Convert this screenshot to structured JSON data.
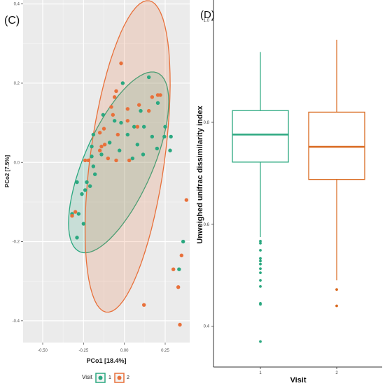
{
  "chart_data": [
    {
      "panel_label": "(C)",
      "type": "scatter",
      "xlabel": "PCo1 [18.4%]",
      "ylabel": "PCo2 [7.5%]",
      "xlim": [
        -0.62,
        0.4
      ],
      "ylim": [
        -0.455,
        0.41
      ],
      "x_ticks": [
        -0.5,
        -0.25,
        0.0,
        0.25
      ],
      "x_tick_labels": [
        "-0.50",
        "-0.25",
        "0.00",
        "0.25"
      ],
      "y_ticks": [
        -0.4,
        -0.2,
        0.0,
        0.2,
        0.4
      ],
      "y_tick_labels": [
        "-0.4",
        "-0.2",
        "0.0",
        "0.2",
        "0.4"
      ],
      "grid": true,
      "legend": {
        "title": "Visit",
        "position": "bottom",
        "entries": [
          "1",
          "2"
        ]
      },
      "series": [
        {
          "name": "1",
          "color": "#2ba880",
          "points": [
            [
              -0.01,
              0.2
            ],
            [
              0.15,
              0.215
            ],
            [
              0.25,
              0.09
            ],
            [
              0.205,
              0.15
            ],
            [
              0.1,
              0.13
            ],
            [
              -0.13,
              0.12
            ],
            [
              -0.06,
              0.105
            ],
            [
              -0.02,
              0.1
            ],
            [
              0.06,
              0.09
            ],
            [
              0.12,
              0.09
            ],
            [
              -0.19,
              0.07
            ],
            [
              0.02,
              0.07
            ],
            [
              0.17,
              0.065
            ],
            [
              0.245,
              0.065
            ],
            [
              -0.09,
              0.05
            ],
            [
              -0.2,
              0.04
            ],
            [
              0.2,
              0.035
            ],
            [
              -0.03,
              0.03
            ],
            [
              0.08,
              0.045
            ],
            [
              0.285,
              0.065
            ],
            [
              0.05,
              0.01
            ],
            [
              0.115,
              0.02
            ],
            [
              -0.14,
              0.02
            ],
            [
              -0.2,
              0.015
            ],
            [
              0.28,
              0.03
            ],
            [
              -0.19,
              -0.01
            ],
            [
              -0.18,
              -0.03
            ],
            [
              -0.23,
              -0.05
            ],
            [
              -0.21,
              -0.06
            ],
            [
              -0.29,
              -0.05
            ],
            [
              -0.26,
              -0.08
            ],
            [
              -0.24,
              -0.07
            ],
            [
              -0.32,
              -0.13
            ],
            [
              -0.28,
              -0.13
            ],
            [
              -0.25,
              -0.155
            ],
            [
              -0.29,
              -0.19
            ],
            [
              0.36,
              -0.2
            ],
            [
              0.335,
              -0.27
            ]
          ]
        },
        {
          "name": "2",
          "color": "#e8703a",
          "points": [
            [
              -0.02,
              0.25
            ],
            [
              -0.05,
              0.18
            ],
            [
              -0.06,
              0.165
            ],
            [
              0.22,
              0.17
            ],
            [
              0.17,
              0.165
            ],
            [
              0.205,
              0.17
            ],
            [
              -0.08,
              0.14
            ],
            [
              0.09,
              0.145
            ],
            [
              0.02,
              0.135
            ],
            [
              0.15,
              0.13
            ],
            [
              -0.07,
              0.12
            ],
            [
              0.02,
              0.105
            ],
            [
              -0.125,
              0.085
            ],
            [
              0.08,
              0.09
            ],
            [
              -0.15,
              0.075
            ],
            [
              -0.04,
              0.07
            ],
            [
              -0.12,
              0.045
            ],
            [
              -0.14,
              0.04
            ],
            [
              -0.15,
              0.03
            ],
            [
              -0.22,
              0.005
            ],
            [
              -0.1,
              0.01
            ],
            [
              0.03,
              0.005
            ],
            [
              -0.24,
              0.005
            ],
            [
              -0.05,
              0.005
            ],
            [
              -0.3,
              -0.125
            ],
            [
              -0.32,
              -0.135
            ],
            [
              0.38,
              -0.095
            ],
            [
              0.35,
              -0.235
            ],
            [
              0.3,
              -0.27
            ],
            [
              0.33,
              -0.315
            ],
            [
              0.12,
              -0.36
            ],
            [
              0.34,
              -0.41
            ]
          ]
        }
      ],
      "ellipses": [
        {
          "series": "1",
          "cx": -0.035,
          "cy": 0.0,
          "rx": 0.353,
          "ry": 0.147,
          "angle_deg": 33
        },
        {
          "series": "2",
          "cx": 0.02,
          "cy": 0.015,
          "rx": 0.42,
          "ry": 0.215,
          "angle_deg": 66
        }
      ]
    },
    {
      "panel_label": "(D)",
      "type": "box",
      "xlabel": "Visit",
      "ylabel": "Unweighed unifrac dissimilarity index",
      "categories": [
        "1",
        "2"
      ],
      "ylim": [
        0.32,
        1.04
      ],
      "y_ticks": [
        0.4,
        0.6,
        0.8,
        1.0
      ],
      "y_tick_labels": [
        "0.4",
        "0.6",
        "0.8",
        "1.0"
      ],
      "grid": false,
      "boxes": [
        {
          "name": "1",
          "color": "#2ba880",
          "q1": 0.722,
          "median": 0.776,
          "q3": 0.823,
          "whisker_low": 0.575,
          "whisker_high": 0.938,
          "outliers": [
            0.567,
            0.563,
            0.549,
            0.533,
            0.528,
            0.522,
            0.513,
            0.505,
            0.49,
            0.478,
            0.445,
            0.443,
            0.37
          ]
        },
        {
          "name": "2",
          "color": "#d9691f",
          "q1": 0.688,
          "median": 0.752,
          "q3": 0.82,
          "whisker_low": 0.49,
          "whisker_high": 0.962,
          "outliers": [
            0.472,
            0.44
          ]
        }
      ]
    }
  ]
}
